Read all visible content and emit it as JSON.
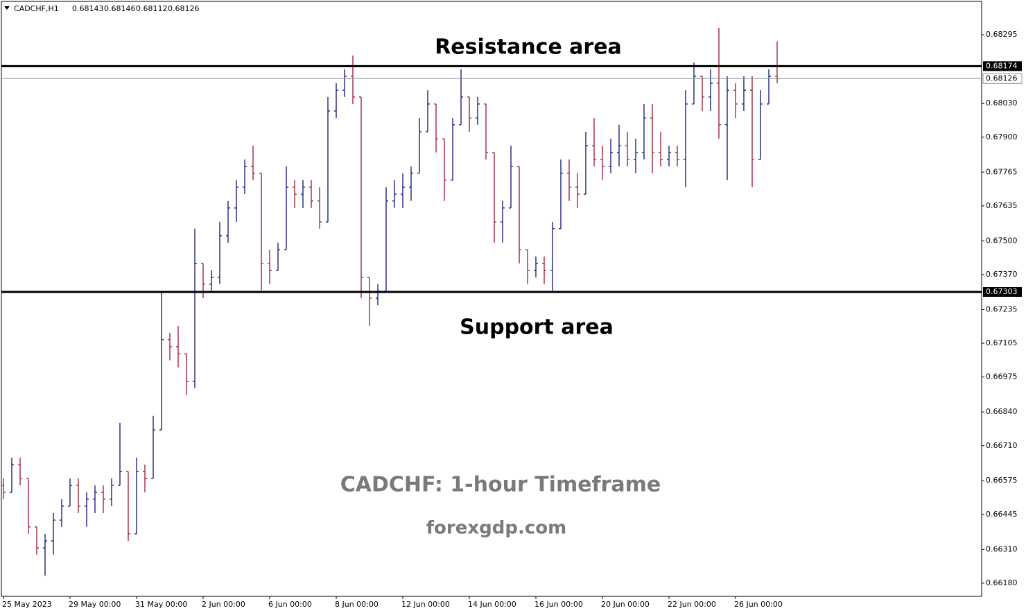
{
  "chart_data": {
    "type": "ohlc",
    "symbol": "CADCHF,H1",
    "header_values": [
      0.68143,
      0.68146,
      0.68112,
      0.68126
    ],
    "up_color": "#2e2e86",
    "down_color": "#a8324e",
    "ylim": [
      0.66129,
      0.68429
    ],
    "yticks": [
      0.68295,
      {
        "value": 0.6803,
        "label": "0.68030"
      },
      {
        "value": 0.679,
        "label": "0.67900"
      },
      0.67765,
      0.67635,
      {
        "value": 0.675,
        "label": "0.67500"
      },
      {
        "value": 0.6737,
        "label": "0.67370"
      },
      0.67235,
      0.67105,
      0.66975,
      {
        "value": 0.6684,
        "label": "0.66840"
      },
      {
        "value": 0.6671,
        "label": "0.66710"
      },
      0.66575,
      0.66445,
      {
        "value": 0.6631,
        "label": "0.66310"
      },
      {
        "value": 0.6618,
        "label": "0.66180"
      }
    ],
    "levels": [
      {
        "value": 0.68174,
        "color": "#000000"
      },
      {
        "value": 0.67303,
        "color": "#000000"
      }
    ],
    "current_price": {
      "value": 0.68126,
      "color": "#8a97a3"
    },
    "annotations": [
      "Resistance area",
      "Support area",
      "CADCHF: 1-hour Timeframe",
      "forexgdp.com"
    ],
    "categories": [
      "25 May 2023",
      null,
      null,
      null,
      null,
      null,
      null,
      null,
      "29 May 00:00",
      null,
      null,
      null,
      null,
      null,
      null,
      null,
      "31 May 00:00",
      null,
      null,
      null,
      null,
      null,
      null,
      null,
      "2 Jun 00:00",
      null,
      null,
      null,
      null,
      null,
      null,
      null,
      "6 Jun 00:00",
      null,
      null,
      null,
      null,
      null,
      null,
      null,
      "8 Jun 00:00",
      null,
      null,
      null,
      null,
      null,
      null,
      null,
      "12 Jun 00:00",
      null,
      null,
      null,
      null,
      null,
      null,
      null,
      "14 Jun 00:00",
      null,
      null,
      null,
      null,
      null,
      null,
      null,
      "16 Jun 00:00",
      null,
      null,
      null,
      null,
      null,
      null,
      null,
      "20 Jun 00:00",
      null,
      null,
      null,
      null,
      null,
      null,
      null,
      "22 Jun 00:00",
      null,
      null,
      null,
      null,
      null,
      null,
      null,
      "26 Jun 00:00",
      null,
      null,
      null,
      null,
      null
    ],
    "open": [
      0.66557,
      0.6653,
      0.66637,
      0.66584,
      0.66397,
      0.66316,
      0.66343,
      0.66423,
      0.66477,
      0.66557,
      0.66477,
      0.66504,
      0.6653,
      0.66504,
      0.66557,
      0.66611,
      0.6637,
      0.66611,
      0.66584,
      0.66771,
      0.67119,
      0.67092,
      0.67065,
      0.66958,
      0.67413,
      0.67333,
      0.67359,
      0.6752,
      0.67627,
      0.67707,
      0.67787,
      0.67761,
      0.67413,
      0.67386,
      0.67466,
      0.67707,
      0.6768,
      0.67707,
      0.67654,
      0.67573,
      0.68001,
      0.68081,
      0.68135,
      0.68055,
      0.67359,
      0.67279,
      0.67306,
      0.67654,
      0.6768,
      0.67707,
      0.67761,
      0.67921,
      0.68028,
      0.67894,
      0.67734,
      0.67948,
      0.68055,
      0.67974,
      0.68028,
      0.67841,
      0.67573,
      0.67627,
      0.67787,
      0.67466,
      0.67386,
      0.67413,
      0.67386,
      0.67547,
      0.67761,
      0.67707,
      0.6768,
      0.67867,
      0.67814,
      0.67787,
      0.67841,
      0.67867,
      0.67814,
      0.67841,
      0.67974,
      0.67841,
      0.67814,
      0.67841,
      0.67814,
      0.68028,
      0.68135,
      0.68055,
      0.68108,
      0.67948,
      0.68081,
      0.68028,
      0.68081,
      0.67814,
      0.68028,
      0.68135
    ],
    "high": [
      0.66584,
      0.66664,
      0.66664,
      0.66584,
      0.66397,
      0.6637,
      0.6645,
      0.66504,
      0.66584,
      0.66584,
      0.6653,
      0.66557,
      0.66557,
      0.66584,
      0.66798,
      0.66611,
      0.66664,
      0.66637,
      0.66825,
      0.67306,
      0.67145,
      0.67172,
      0.67065,
      0.67547,
      0.67413,
      0.67386,
      0.67573,
      0.67654,
      0.67734,
      0.67814,
      0.67867,
      0.67761,
      0.67466,
      0.67493,
      0.67787,
      0.67734,
      0.67734,
      0.67734,
      0.67707,
      0.68055,
      0.68108,
      0.68162,
      0.68215,
      0.68055,
      0.67359,
      0.67333,
      0.67707,
      0.67734,
      0.67761,
      0.67787,
      0.67974,
      0.68081,
      0.68028,
      0.67894,
      0.67974,
      0.68162,
      0.68055,
      0.68055,
      0.68028,
      0.67841,
      0.67654,
      0.67867,
      0.67787,
      0.67466,
      0.6744,
      0.6744,
      0.67573,
      0.67814,
      0.67814,
      0.67761,
      0.67921,
      0.67974,
      0.67867,
      0.67894,
      0.67948,
      0.67921,
      0.67894,
      0.68028,
      0.68028,
      0.67921,
      0.67867,
      0.67867,
      0.68081,
      0.68188,
      0.68135,
      0.68162,
      0.68322,
      0.68135,
      0.68108,
      0.68135,
      0.68135,
      0.68081,
      0.68162,
      0.68269
    ],
    "low": [
      0.66504,
      0.6653,
      0.66557,
      0.6637,
      0.6629,
      0.66209,
      0.6629,
      0.66397,
      0.66477,
      0.6645,
      0.66397,
      0.6645,
      0.6645,
      0.66477,
      0.66557,
      0.66343,
      0.6637,
      0.6653,
      0.66584,
      0.66771,
      0.67039,
      0.67012,
      0.66905,
      0.66932,
      0.67279,
      0.67306,
      0.67333,
      0.67493,
      0.67573,
      0.6768,
      0.67734,
      0.67306,
      0.67333,
      0.67386,
      0.67466,
      0.67627,
      0.67627,
      0.67627,
      0.67547,
      0.67573,
      0.67974,
      0.68055,
      0.68028,
      0.67279,
      0.67172,
      0.67252,
      0.67306,
      0.67627,
      0.67627,
      0.67654,
      0.67761,
      0.67921,
      0.67841,
      0.67654,
      0.67734,
      0.67948,
      0.67921,
      0.67948,
      0.67814,
      0.67493,
      0.67493,
      0.67627,
      0.67413,
      0.67333,
      0.67359,
      0.67333,
      0.67306,
      0.67547,
      0.67654,
      0.67627,
      0.6768,
      0.67787,
      0.67734,
      0.67761,
      0.67787,
      0.67787,
      0.67761,
      0.67814,
      0.67761,
      0.67787,
      0.67787,
      0.67787,
      0.67707,
      0.68028,
      0.68001,
      0.68001,
      0.67894,
      0.67734,
      0.67974,
      0.68001,
      0.67707,
      0.67814,
      0.68028,
      0.68108
    ],
    "close": [
      0.6653,
      0.66637,
      0.66584,
      0.66397,
      0.66316,
      0.66343,
      0.66423,
      0.66477,
      0.66557,
      0.66477,
      0.66504,
      0.6653,
      0.66504,
      0.66557,
      0.66611,
      0.6637,
      0.66611,
      0.66584,
      0.66771,
      0.67119,
      0.67092,
      0.67065,
      0.66958,
      0.67413,
      0.67333,
      0.67359,
      0.6752,
      0.67627,
      0.67707,
      0.67787,
      0.67761,
      0.67413,
      0.67386,
      0.67466,
      0.67707,
      0.6768,
      0.67707,
      0.67654,
      0.67573,
      0.68001,
      0.68081,
      0.68135,
      0.68055,
      0.67359,
      0.67279,
      0.67306,
      0.67654,
      0.6768,
      0.67707,
      0.67761,
      0.67921,
      0.68028,
      0.67894,
      0.67734,
      0.67948,
      0.68055,
      0.67974,
      0.68028,
      0.67841,
      0.67573,
      0.67627,
      0.67787,
      0.67466,
      0.67386,
      0.67413,
      0.67386,
      0.67547,
      0.67761,
      0.67707,
      0.6768,
      0.67867,
      0.67814,
      0.67787,
      0.67841,
      0.67867,
      0.67814,
      0.67841,
      0.67974,
      0.67841,
      0.67814,
      0.67841,
      0.67814,
      0.68028,
      0.68135,
      0.68055,
      0.68108,
      0.67948,
      0.68081,
      0.68028,
      0.68081,
      0.67814,
      0.68028,
      0.68135,
      0.68126
    ]
  }
}
